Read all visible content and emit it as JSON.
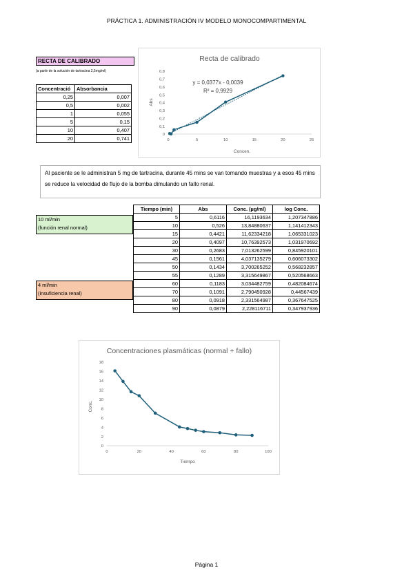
{
  "page_title": "PRÁCTICA 1. ADMINISTRACIÓN IV MODELO MONOCOMPARTIMENTAL",
  "calibration": {
    "heading": "RECTA DE CALIBRADO",
    "subtitle": "(a partir de la solución de tartracina 2,5mg/ml)",
    "headers": [
      "Concentració",
      "Absorbancia"
    ],
    "rows": [
      [
        "0,25",
        "0,007"
      ],
      [
        "0,5",
        "0,002"
      ],
      [
        "1",
        "0,055"
      ],
      [
        "5",
        "0,15"
      ],
      [
        "10",
        "0,407"
      ],
      [
        "20",
        "0,741"
      ]
    ]
  },
  "note": "Al paciente se le administran 5 mg de tartracina, durante 45 mins se van tomando muestras y a esos 45 mins se reduce la velocidad de flujo de la bomba dimulando un fallo renal.",
  "phases": {
    "normal": [
      "10 ml/min",
      "(función renal normal)"
    ],
    "renal": [
      "4 ml/min",
      "(insuficiencia renal)"
    ]
  },
  "samples": {
    "headers": [
      "Tiempo (min)",
      "Abs",
      "Conc. (µg/ml)",
      "log Conc."
    ],
    "rows": [
      [
        "5",
        "0,6116",
        "16,1193634",
        "1,207347886"
      ],
      [
        "10",
        "0,526",
        "13,84880637",
        "1,141412343"
      ],
      [
        "15",
        "0,4421",
        "11,62334218",
        "1,065331023"
      ],
      [
        "20",
        "0,4097",
        "10,76392573",
        "1,031970692"
      ],
      [
        "30",
        "0,2683",
        "7,013262599",
        "0,845920101"
      ],
      [
        "45",
        "0,1561",
        "4,037135279",
        "0,606073302"
      ],
      [
        "50",
        "0,1434",
        "3,700265252",
        "0,568232857"
      ],
      [
        "55",
        "0,1289",
        "3,315649867",
        "0,520568663"
      ],
      [
        "60",
        "0,1183",
        "3,034482759",
        "0,482084674"
      ],
      [
        "70",
        "0,1091",
        "2,790450928",
        "0,44567439"
      ],
      [
        "80",
        "0,0918",
        "2,331564987",
        "0,367647525"
      ],
      [
        "90",
        "0,0879",
        "2,228116711",
        "0,347937936"
      ]
    ]
  },
  "chart_data": [
    {
      "type": "scatter",
      "title": "Recta de calibrado",
      "xlabel": "Concen.",
      "ylabel": "Abs",
      "xlim": [
        0,
        25
      ],
      "ylim": [
        0,
        0.8
      ],
      "xticks": [
        "0",
        "5",
        "10",
        "15",
        "20",
        "25"
      ],
      "yticks": [
        "0",
        "0,1",
        "0,2",
        "0,3",
        "0,4",
        "0,5",
        "0,6",
        "0,7",
        "0,8"
      ],
      "x": [
        0.25,
        0.5,
        1,
        5,
        10,
        20
      ],
      "y": [
        0.007,
        0.002,
        0.055,
        0.15,
        0.407,
        0.741
      ],
      "trendline": {
        "slope": 0.0377,
        "intercept": -0.0039,
        "equation": "y = 0,0377x - 0,0039",
        "r2": "R² = 0,9929"
      },
      "color": "#1f5f7a",
      "grid": false
    },
    {
      "type": "line",
      "title": "Concentraciones plasmáticas (normal + fallo)",
      "xlabel": "Tiempo",
      "ylabel": "Conc.",
      "xlim": [
        0,
        100
      ],
      "ylim": [
        0,
        18
      ],
      "xticks": [
        "0",
        "20",
        "40",
        "60",
        "80",
        "100"
      ],
      "yticks": [
        "0",
        "2",
        "4",
        "6",
        "8",
        "10",
        "12",
        "14",
        "16",
        "18"
      ],
      "x": [
        5,
        10,
        15,
        20,
        30,
        45,
        50,
        55,
        60,
        70,
        80,
        90
      ],
      "y": [
        16.12,
        13.85,
        11.62,
        10.76,
        7.01,
        4.04,
        3.7,
        3.32,
        3.03,
        2.79,
        2.33,
        2.23
      ],
      "color": "#1f5f7a",
      "grid": false
    }
  ],
  "footer": "Página 1"
}
